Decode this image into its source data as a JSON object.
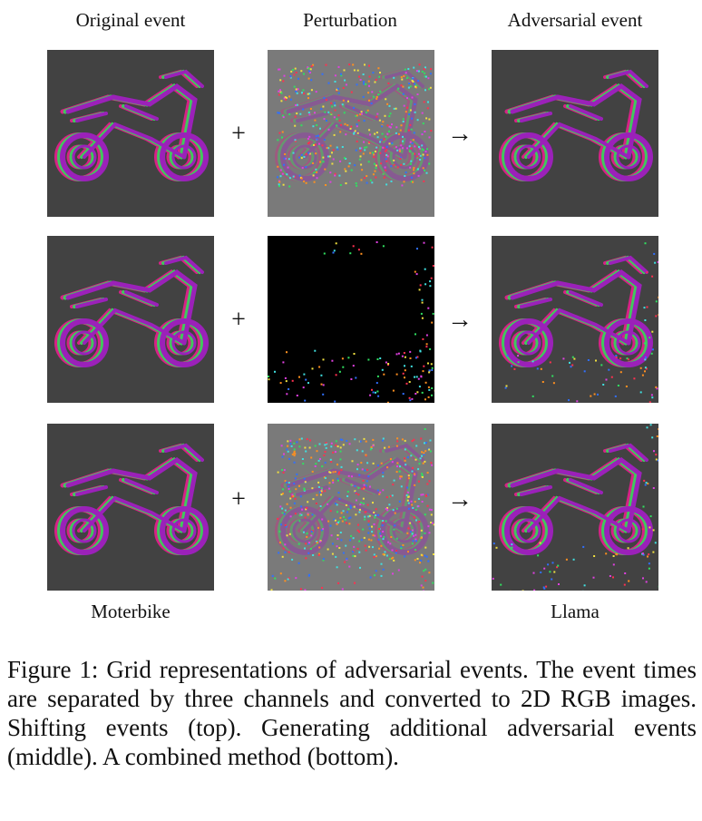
{
  "figure": {
    "column_headers": [
      "Original event",
      "Perturbation",
      "Adversarial event"
    ],
    "operators": {
      "plus": "+",
      "arrow": "→"
    },
    "rows": [
      {
        "name": "shifting",
        "perturbation_style": "shift"
      },
      {
        "name": "generating",
        "perturbation_style": "additive"
      },
      {
        "name": "combined",
        "perturbation_style": "combined"
      }
    ],
    "labels": {
      "original_class": "Moterbike",
      "adversarial_class": "Llama"
    },
    "caption": "Figure 1: Grid representations of adversarial events. The event times are separated by three channels and converted to 2D RGB images. Shifting events (top). Generating additional adversarial events (middle). A combined method (bottom).",
    "colors": {
      "event_background": "#424242",
      "perturbation_background_shift": "#7a7a7a",
      "perturbation_background_additive": "#000000",
      "channel_red": "#e0208a",
      "channel_green": "#40d060",
      "channel_purple": "#a020c0"
    }
  }
}
